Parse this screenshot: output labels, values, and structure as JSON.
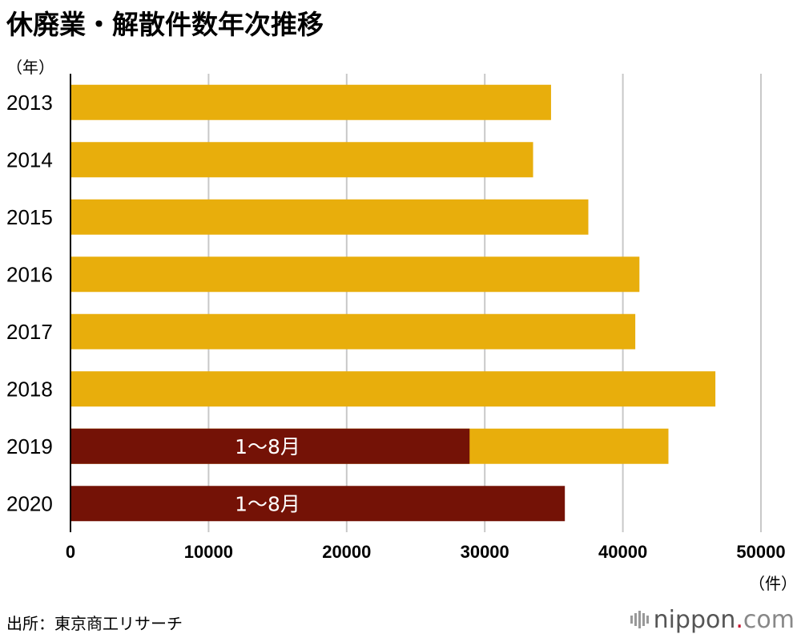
{
  "chart_data": {
    "type": "bar",
    "orientation": "horizontal",
    "title": "休廃業・解散件数年次推移",
    "ylabel": "（年）",
    "xlabel": "（件）",
    "categories": [
      "2013",
      "2014",
      "2015",
      "2016",
      "2017",
      "2018",
      "2019",
      "2020"
    ],
    "series": [
      {
        "values": [
          34800,
          33500,
          37500,
          41200,
          40900,
          46700,
          43300,
          null
        ],
        "color": "#e8ae0c"
      },
      {
        "name": "1〜8月",
        "values": [
          null,
          null,
          null,
          null,
          null,
          null,
          28900,
          35800
        ],
        "color": "#741206"
      }
    ],
    "bar_labels": [
      {
        "category": "2019",
        "text": "1〜8月"
      },
      {
        "category": "2020",
        "text": "1〜8月"
      }
    ],
    "xlim": [
      0,
      50000
    ],
    "xticks": [
      "0",
      "10000",
      "20000",
      "30000",
      "40000",
      "50000"
    ],
    "grid": true,
    "legend": "none"
  },
  "source": "出所：東京商工リサーチ",
  "logo": {
    "name": "nippon",
    "dot": ".",
    "tld": "com"
  }
}
